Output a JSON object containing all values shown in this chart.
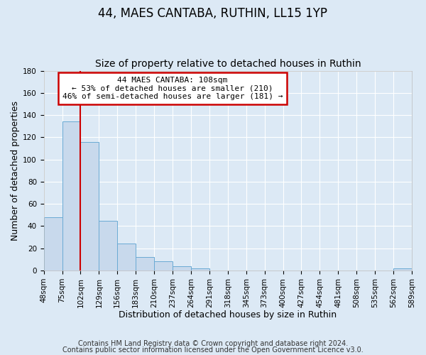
{
  "title": "44, MAES CANTABA, RUTHIN, LL15 1YP",
  "subtitle": "Size of property relative to detached houses in Ruthin",
  "xlabel": "Distribution of detached houses by size in Ruthin",
  "ylabel": "Number of detached properties",
  "bar_values": [
    48,
    134,
    116,
    45,
    24,
    12,
    8,
    4,
    2,
    0,
    0,
    0,
    0,
    0,
    0,
    0,
    0,
    0,
    0,
    2
  ],
  "bar_labels": [
    "48sqm",
    "75sqm",
    "102sqm",
    "129sqm",
    "156sqm",
    "183sqm",
    "210sqm",
    "237sqm",
    "264sqm",
    "291sqm",
    "318sqm",
    "345sqm",
    "373sqm",
    "400sqm",
    "427sqm",
    "454sqm",
    "481sqm",
    "508sqm",
    "535sqm",
    "562sqm",
    "589sqm"
  ],
  "ylim": [
    0,
    180
  ],
  "yticks": [
    0,
    20,
    40,
    60,
    80,
    100,
    120,
    140,
    160,
    180
  ],
  "bar_color": "#c8d9ec",
  "bar_edge_color": "#6aaad4",
  "vline_x": 2,
  "vline_color": "#cc0000",
  "annotation_line1": "44 MAES CANTABA: 108sqm",
  "annotation_line2": "← 53% of detached houses are smaller (210)",
  "annotation_line3": "46% of semi-detached houses are larger (181) →",
  "annotation_box_edge_color": "#cc0000",
  "footer_line1": "Contains HM Land Registry data © Crown copyright and database right 2024.",
  "footer_line2": "Contains public sector information licensed under the Open Government Licence v3.0.",
  "background_color": "#dce9f5",
  "plot_bg_color": "#dce9f5",
  "grid_color": "#ffffff",
  "title_fontsize": 12,
  "subtitle_fontsize": 10,
  "axis_label_fontsize": 9,
  "tick_fontsize": 7.5,
  "annotation_fontsize": 8,
  "footer_fontsize": 7
}
